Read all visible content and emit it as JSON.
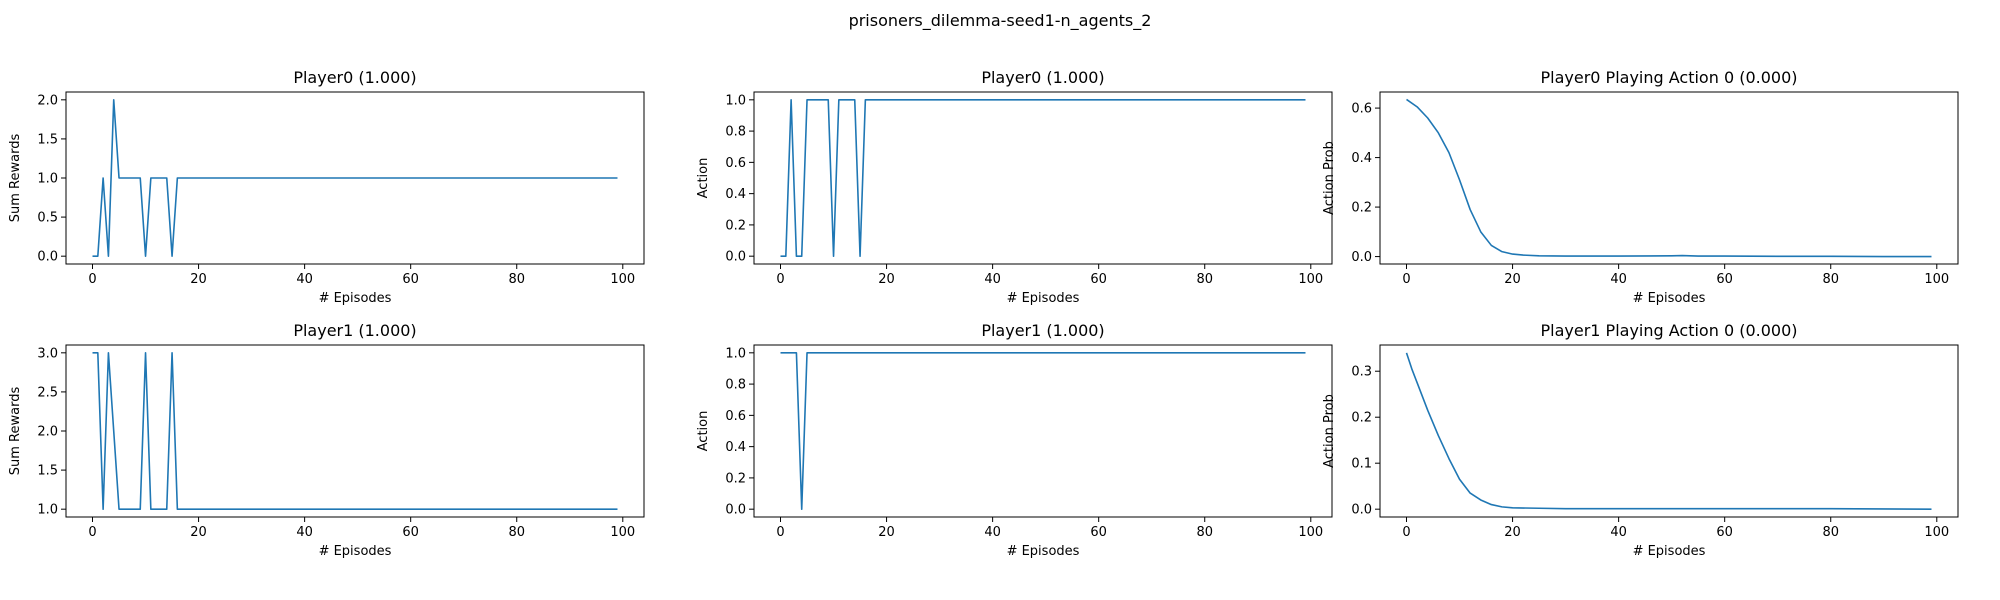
{
  "suptitle": "prisoners_dilemma-seed1-n_agents_2",
  "colors": {
    "series": "#1f77b4"
  },
  "chart_data": [
    {
      "type": "line",
      "title": "Player0 (1.000)",
      "xlabel": "# Episodes",
      "ylabel": "Sum Rewards",
      "xlim": [
        -5,
        104
      ],
      "ylim": [
        -0.1,
        2.1
      ],
      "xticks": [
        0,
        20,
        40,
        60,
        80,
        100
      ],
      "xtick_labels": [
        "0",
        "20",
        "40",
        "60",
        "80",
        "100"
      ],
      "yticks": [
        0,
        0.5,
        1,
        1.5,
        2
      ],
      "ytick_labels": [
        "0.0",
        "0.5",
        "1.0",
        "1.5",
        "2.0"
      ],
      "x": [
        0,
        1,
        2,
        3,
        4,
        5,
        6,
        7,
        8,
        9,
        10,
        11,
        12,
        13,
        14,
        15,
        16,
        99
      ],
      "values": [
        0,
        0,
        1,
        0,
        2,
        1,
        1,
        1,
        1,
        1,
        0,
        1,
        1,
        1,
        1,
        0,
        1,
        1
      ]
    },
    {
      "type": "line",
      "title": "Player0 (1.000)",
      "xlabel": "# Episodes",
      "ylabel": "Action",
      "xlim": [
        -5,
        104
      ],
      "ylim": [
        -0.05,
        1.05
      ],
      "xticks": [
        0,
        20,
        40,
        60,
        80,
        100
      ],
      "xtick_labels": [
        "0",
        "20",
        "40",
        "60",
        "80",
        "100"
      ],
      "yticks": [
        0,
        0.2,
        0.4,
        0.6,
        0.8,
        1
      ],
      "ytick_labels": [
        "0.0",
        "0.2",
        "0.4",
        "0.6",
        "0.8",
        "1.0"
      ],
      "x": [
        0,
        1,
        2,
        3,
        4,
        5,
        6,
        7,
        8,
        9,
        10,
        11,
        12,
        13,
        14,
        15,
        16,
        99
      ],
      "values": [
        0,
        0,
        1,
        0,
        0,
        1,
        1,
        1,
        1,
        1,
        0,
        1,
        1,
        1,
        1,
        0,
        1,
        1
      ]
    },
    {
      "type": "line",
      "title": "Player0 Playing Action 0 (0.000)",
      "xlabel": "# Episodes",
      "ylabel": "Action Prob",
      "xlim": [
        -5,
        104
      ],
      "ylim": [
        -0.03,
        0.665
      ],
      "xticks": [
        0,
        20,
        40,
        60,
        80,
        100
      ],
      "xtick_labels": [
        "0",
        "20",
        "40",
        "60",
        "80",
        "100"
      ],
      "yticks": [
        0,
        0.2,
        0.4,
        0.6
      ],
      "ytick_labels": [
        "0.0",
        "0.2",
        "0.4",
        "0.6"
      ],
      "x": [
        0,
        2,
        4,
        6,
        8,
        10,
        12,
        14,
        16,
        18,
        20,
        22,
        25,
        30,
        40,
        50,
        52,
        55,
        60,
        70,
        80,
        90,
        99
      ],
      "values": [
        0.635,
        0.605,
        0.56,
        0.5,
        0.42,
        0.31,
        0.19,
        0.1,
        0.045,
        0.02,
        0.01,
        0.006,
        0.003,
        0.002,
        0.002,
        0.003,
        0.004,
        0.002,
        0.002,
        0.001,
        0.001,
        0.0,
        0.0
      ]
    },
    {
      "type": "line",
      "title": "Player1 (1.000)",
      "xlabel": "# Episodes",
      "ylabel": "Sum Rewards",
      "xlim": [
        -5,
        104
      ],
      "ylim": [
        0.9,
        3.1
      ],
      "xticks": [
        0,
        20,
        40,
        60,
        80,
        100
      ],
      "xtick_labels": [
        "0",
        "20",
        "40",
        "60",
        "80",
        "100"
      ],
      "yticks": [
        1,
        1.5,
        2,
        2.5,
        3
      ],
      "ytick_labels": [
        "1.0",
        "1.5",
        "2.0",
        "2.5",
        "3.0"
      ],
      "x": [
        0,
        1,
        2,
        3,
        4,
        5,
        6,
        7,
        8,
        9,
        10,
        11,
        12,
        13,
        14,
        15,
        16,
        99
      ],
      "values": [
        3,
        3,
        1,
        3,
        2,
        1,
        1,
        1,
        1,
        1,
        3,
        1,
        1,
        1,
        1,
        3,
        1,
        1
      ]
    },
    {
      "type": "line",
      "title": "Player1 (1.000)",
      "xlabel": "# Episodes",
      "ylabel": "Action",
      "xlim": [
        -5,
        104
      ],
      "ylim": [
        -0.05,
        1.05
      ],
      "xticks": [
        0,
        20,
        40,
        60,
        80,
        100
      ],
      "xtick_labels": [
        "0",
        "20",
        "40",
        "60",
        "80",
        "100"
      ],
      "yticks": [
        0,
        0.2,
        0.4,
        0.6,
        0.8,
        1
      ],
      "ytick_labels": [
        "0.0",
        "0.2",
        "0.4",
        "0.6",
        "0.8",
        "1.0"
      ],
      "x": [
        0,
        1,
        2,
        3,
        4,
        5,
        99
      ],
      "values": [
        1,
        1,
        1,
        1,
        0,
        1,
        1
      ]
    },
    {
      "type": "line",
      "title": "Player1 Playing Action 0 (0.000)",
      "xlabel": "# Episodes",
      "ylabel": "Action Prob",
      "xlim": [
        -5,
        104
      ],
      "ylim": [
        -0.017,
        0.357
      ],
      "xticks": [
        0,
        20,
        40,
        60,
        80,
        100
      ],
      "xtick_labels": [
        "0",
        "20",
        "40",
        "60",
        "80",
        "100"
      ],
      "yticks": [
        0,
        0.1,
        0.2,
        0.3
      ],
      "ytick_labels": [
        "0.0",
        "0.1",
        "0.2",
        "0.3"
      ],
      "x": [
        0,
        1,
        2,
        4,
        6,
        8,
        10,
        12,
        14,
        16,
        18,
        20,
        25,
        30,
        40,
        60,
        80,
        99
      ],
      "values": [
        0.34,
        0.305,
        0.275,
        0.215,
        0.16,
        0.11,
        0.065,
        0.035,
        0.02,
        0.01,
        0.005,
        0.003,
        0.002,
        0.001,
        0.001,
        0.001,
        0.001,
        0.0
      ]
    }
  ]
}
